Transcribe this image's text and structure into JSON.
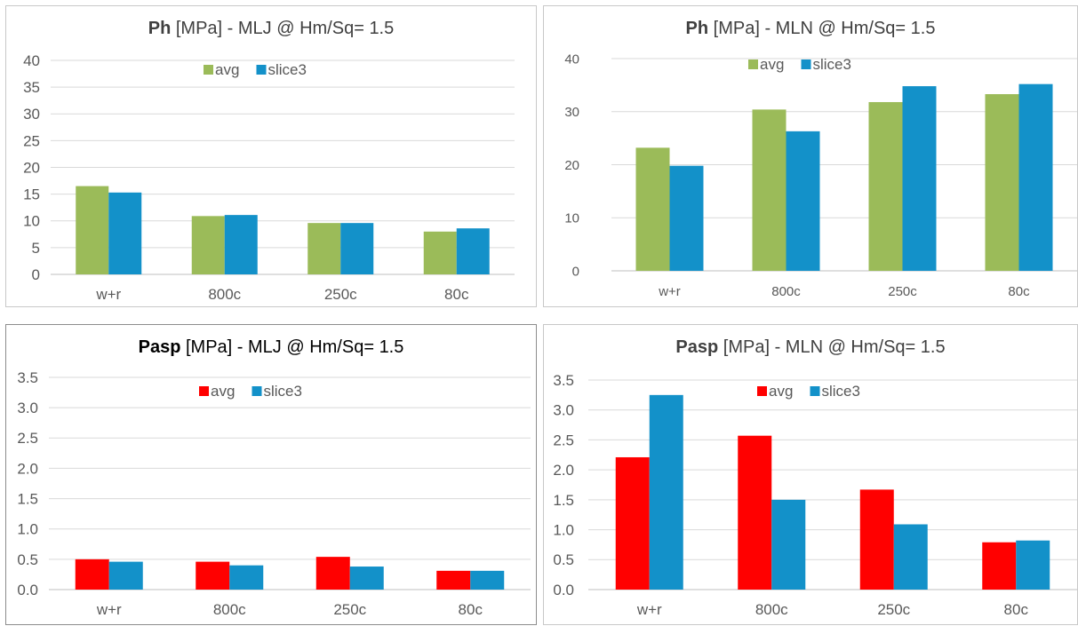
{
  "charts": [
    {
      "title_bold": "Ph",
      "title_rest": " [MPa] - MLJ @ Hm/Sq= 1.5"
    },
    {
      "title_bold": "Ph",
      "title_rest": " [MPa] - MLN @ Hm/Sq=  1.5"
    },
    {
      "title_bold": "Pasp",
      "title_rest": " [MPa] - MLJ @ Hm/Sq= 1.5"
    },
    {
      "title_bold": "Pasp",
      "title_rest": " [MPa] - MLN @ Hm/Sq= 1.5"
    }
  ],
  "colors": {
    "green": "#9bbb59",
    "blue": "#1391c9",
    "red": "#ff0000",
    "grid": "#d9d9d9"
  },
  "chart_data": [
    {
      "type": "bar",
      "title": "Ph [MPa] - MLJ @ Hm/Sq= 1.5",
      "categories": [
        "w+r",
        "800c",
        "250c",
        "80c"
      ],
      "series": [
        {
          "name": "avg",
          "color": "#9bbb59",
          "values": [
            16.5,
            10.9,
            9.6,
            8.0
          ]
        },
        {
          "name": "slice3",
          "color": "#1391c9",
          "values": [
            15.3,
            11.1,
            9.6,
            8.6
          ]
        }
      ],
      "ylim": [
        0,
        40
      ],
      "yticks": [
        "0",
        "5",
        "10",
        "15",
        "20",
        "25",
        "30",
        "35",
        "40"
      ],
      "legend": "top-center",
      "grid": true
    },
    {
      "type": "bar",
      "title": "Ph [MPa] - MLN @ Hm/Sq=  1.5",
      "categories": [
        "w+r",
        "800c",
        "250c",
        "80c"
      ],
      "series": [
        {
          "name": "avg",
          "color": "#9bbb59",
          "values": [
            23.2,
            30.4,
            31.8,
            33.3
          ]
        },
        {
          "name": "slice3",
          "color": "#1391c9",
          "values": [
            19.8,
            26.3,
            34.8,
            35.2
          ]
        }
      ],
      "ylim": [
        0,
        40
      ],
      "yticks": [
        "0",
        "10",
        "20",
        "30",
        "40"
      ],
      "legend": "top-center",
      "grid": true
    },
    {
      "type": "bar",
      "title": "Pasp [MPa] - MLJ @ Hm/Sq= 1.5",
      "categories": [
        "w+r",
        "800c",
        "250c",
        "80c"
      ],
      "series": [
        {
          "name": "avg",
          "color": "#ff0000",
          "values": [
            0.5,
            0.46,
            0.54,
            0.31
          ]
        },
        {
          "name": "slice3",
          "color": "#1391c9",
          "values": [
            0.46,
            0.4,
            0.38,
            0.31
          ]
        }
      ],
      "ylim": [
        0,
        3.5
      ],
      "yticks": [
        "0.0",
        "0.5",
        "1.0",
        "1.5",
        "2.0",
        "2.5",
        "3.0",
        "3.5"
      ],
      "legend": "top-center",
      "grid": true
    },
    {
      "type": "bar",
      "title": "Pasp [MPa] - MLN @ Hm/Sq= 1.5",
      "categories": [
        "w+r",
        "800c",
        "250c",
        "80c"
      ],
      "series": [
        {
          "name": "avg",
          "color": "#ff0000",
          "values": [
            2.21,
            2.57,
            1.67,
            0.79
          ]
        },
        {
          "name": "slice3",
          "color": "#1391c9",
          "values": [
            3.25,
            1.5,
            1.09,
            0.82
          ]
        }
      ],
      "ylim": [
        0,
        3.5
      ],
      "yticks": [
        "0.0",
        "0.5",
        "1.0",
        "1.5",
        "2.0",
        "2.5",
        "3.0",
        "3.5"
      ],
      "legend": "top-center",
      "grid": true
    }
  ]
}
